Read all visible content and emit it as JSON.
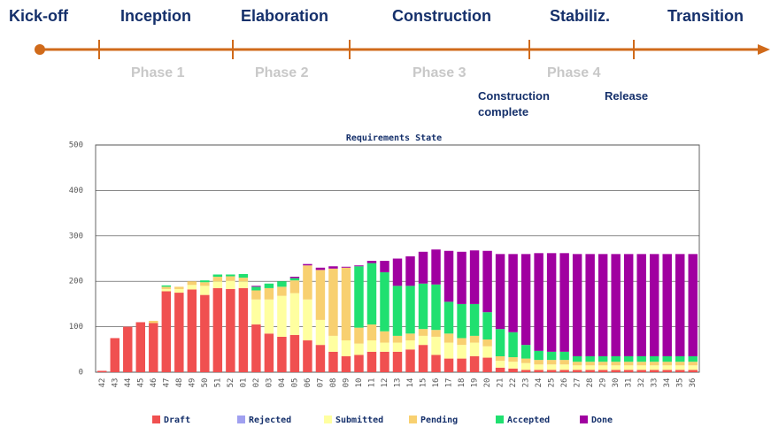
{
  "timeline": {
    "milestones": [
      "Kick-off",
      "Inception",
      "Elaboration",
      "Construction",
      "Stabiliz.",
      "Transition"
    ],
    "phases": [
      "Phase 1",
      "Phase 2",
      "Phase 3",
      "Phase 4"
    ],
    "notes": [
      "Construction complete",
      "Release"
    ]
  },
  "chart_data": {
    "type": "stacked_bar",
    "title": "Requirements State",
    "categories": [
      "42",
      "43",
      "44",
      "45",
      "46",
      "47",
      "48",
      "49",
      "50",
      "51",
      "52",
      "01",
      "02",
      "03",
      "04",
      "05",
      "06",
      "07",
      "08",
      "09",
      "10",
      "11",
      "12",
      "13",
      "14",
      "15",
      "16",
      "17",
      "18",
      "19",
      "20",
      "21",
      "22",
      "23",
      "24",
      "25",
      "26",
      "27",
      "28",
      "29",
      "30",
      "31",
      "32",
      "33",
      "34",
      "35",
      "36"
    ],
    "ylim": [
      0,
      500
    ],
    "yticks": [
      0,
      100,
      200,
      300,
      400,
      500
    ],
    "grid": true,
    "series": [
      {
        "name": "Draft",
        "color": "#f05050",
        "values": [
          3,
          75,
          100,
          110,
          108,
          178,
          175,
          182,
          170,
          185,
          183,
          185,
          105,
          85,
          78,
          82,
          70,
          60,
          45,
          35,
          38,
          45,
          45,
          45,
          50,
          60,
          38,
          30,
          30,
          35,
          32,
          10,
          8,
          5,
          5,
          5,
          5,
          5,
          5,
          5,
          5,
          5,
          5,
          5,
          5,
          5,
          5
        ]
      },
      {
        "name": "Rejected",
        "color": "#a0a0f0",
        "values": [
          0,
          0,
          0,
          0,
          0,
          0,
          0,
          0,
          0,
          0,
          0,
          0,
          0,
          0,
          0,
          0,
          0,
          0,
          0,
          0,
          0,
          0,
          0,
          0,
          0,
          0,
          0,
          0,
          0,
          0,
          0,
          0,
          0,
          0,
          0,
          0,
          0,
          0,
          0,
          0,
          0,
          0,
          0,
          0,
          0,
          0,
          0
        ]
      },
      {
        "name": "Submitted",
        "color": "#ffffa0",
        "values": [
          0,
          0,
          0,
          0,
          0,
          5,
          8,
          10,
          20,
          15,
          18,
          15,
          55,
          75,
          90,
          92,
          90,
          55,
          35,
          35,
          25,
          25,
          20,
          20,
          20,
          20,
          40,
          35,
          30,
          30,
          25,
          15,
          15,
          15,
          12,
          12,
          12,
          10,
          10,
          10,
          10,
          10,
          10,
          10,
          10,
          10,
          10
        ]
      },
      {
        "name": "Pending",
        "color": "#f8d070",
        "values": [
          0,
          0,
          0,
          0,
          5,
          5,
          5,
          8,
          8,
          10,
          10,
          8,
          20,
          25,
          20,
          28,
          75,
          110,
          148,
          160,
          35,
          35,
          25,
          15,
          15,
          15,
          15,
          20,
          15,
          15,
          15,
          10,
          10,
          10,
          10,
          10,
          10,
          8,
          8,
          8,
          8,
          8,
          8,
          8,
          8,
          8,
          8
        ]
      },
      {
        "name": "Accepted",
        "color": "#20e070",
        "values": [
          0,
          0,
          0,
          0,
          0,
          3,
          0,
          0,
          4,
          5,
          4,
          8,
          8,
          10,
          12,
          5,
          0,
          0,
          0,
          0,
          135,
          135,
          130,
          110,
          105,
          100,
          100,
          70,
          75,
          70,
          60,
          60,
          55,
          30,
          20,
          18,
          18,
          12,
          12,
          12,
          12,
          12,
          12,
          12,
          12,
          12,
          12
        ]
      },
      {
        "name": "Done",
        "color": "#a000a0",
        "values": [
          0,
          0,
          0,
          0,
          0,
          0,
          0,
          0,
          0,
          0,
          0,
          0,
          2,
          0,
          0,
          3,
          3,
          5,
          5,
          2,
          2,
          5,
          25,
          60,
          65,
          70,
          77,
          112,
          115,
          118,
          135,
          165,
          172,
          200,
          215,
          217,
          217,
          225,
          225,
          225,
          225,
          225,
          225,
          225,
          225,
          225,
          225
        ]
      }
    ]
  }
}
